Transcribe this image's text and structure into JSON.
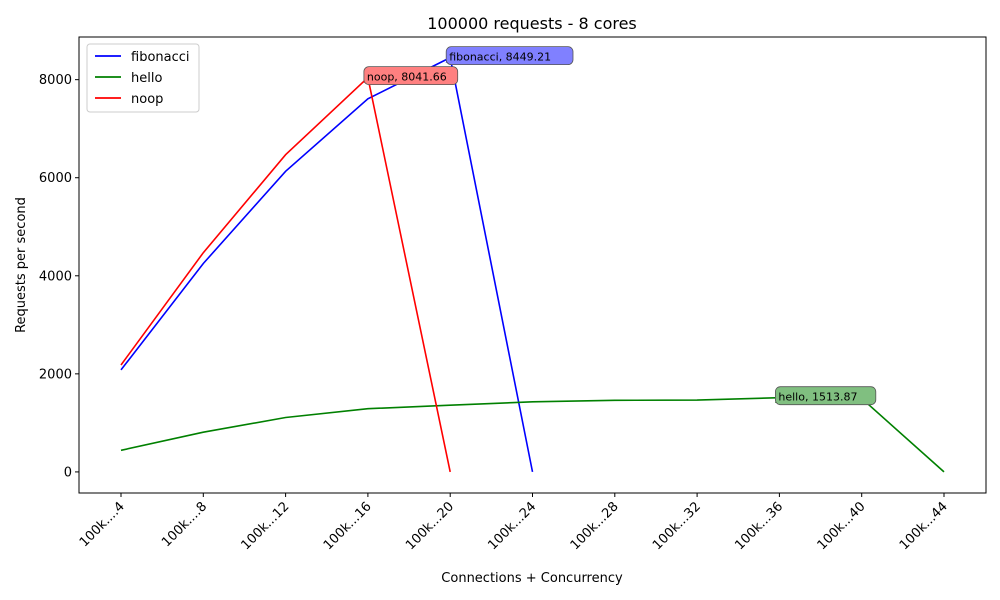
{
  "chart_data": {
    "type": "line",
    "title": "100000 requests - 8 cores",
    "xlabel": "Connections + Concurrency",
    "ylabel": "Requests per second",
    "categories": [
      "100k....4",
      "100k....8",
      "100k...12",
      "100k...16",
      "100k...20",
      "100k...24",
      "100k...28",
      "100k...32",
      "100k...36",
      "100k...40",
      "100k...44"
    ],
    "yticks": [
      0,
      2000,
      4000,
      6000,
      8000
    ],
    "ylim": [
      -430,
      8870
    ],
    "grid": false,
    "legend": "top-left",
    "series": [
      {
        "name": "fibonacci",
        "color": "#0000ff",
        "values": [
          2080,
          4250,
          6130,
          7610,
          8449.21,
          0,
          null,
          null,
          null,
          null,
          null
        ],
        "annotation": {
          "index": 4,
          "text": "fibonacci, 8449.21",
          "bg": "#8080ff"
        }
      },
      {
        "name": "hello",
        "color": "#008000",
        "values": [
          440,
          810,
          1110,
          1290,
          1360,
          1430,
          1460,
          1465,
          1513.87,
          1500,
          0
        ],
        "annotation": {
          "index": 8,
          "text": "hello, 1513.87",
          "bg": "#80bf80"
        }
      },
      {
        "name": "noop",
        "color": "#ff0000",
        "values": [
          2180,
          4470,
          6470,
          8041.66,
          0,
          null,
          null,
          null,
          null,
          null,
          null
        ],
        "annotation": {
          "index": 3,
          "text": "noop, 8041.66",
          "bg": "#ff8080"
        }
      }
    ]
  }
}
